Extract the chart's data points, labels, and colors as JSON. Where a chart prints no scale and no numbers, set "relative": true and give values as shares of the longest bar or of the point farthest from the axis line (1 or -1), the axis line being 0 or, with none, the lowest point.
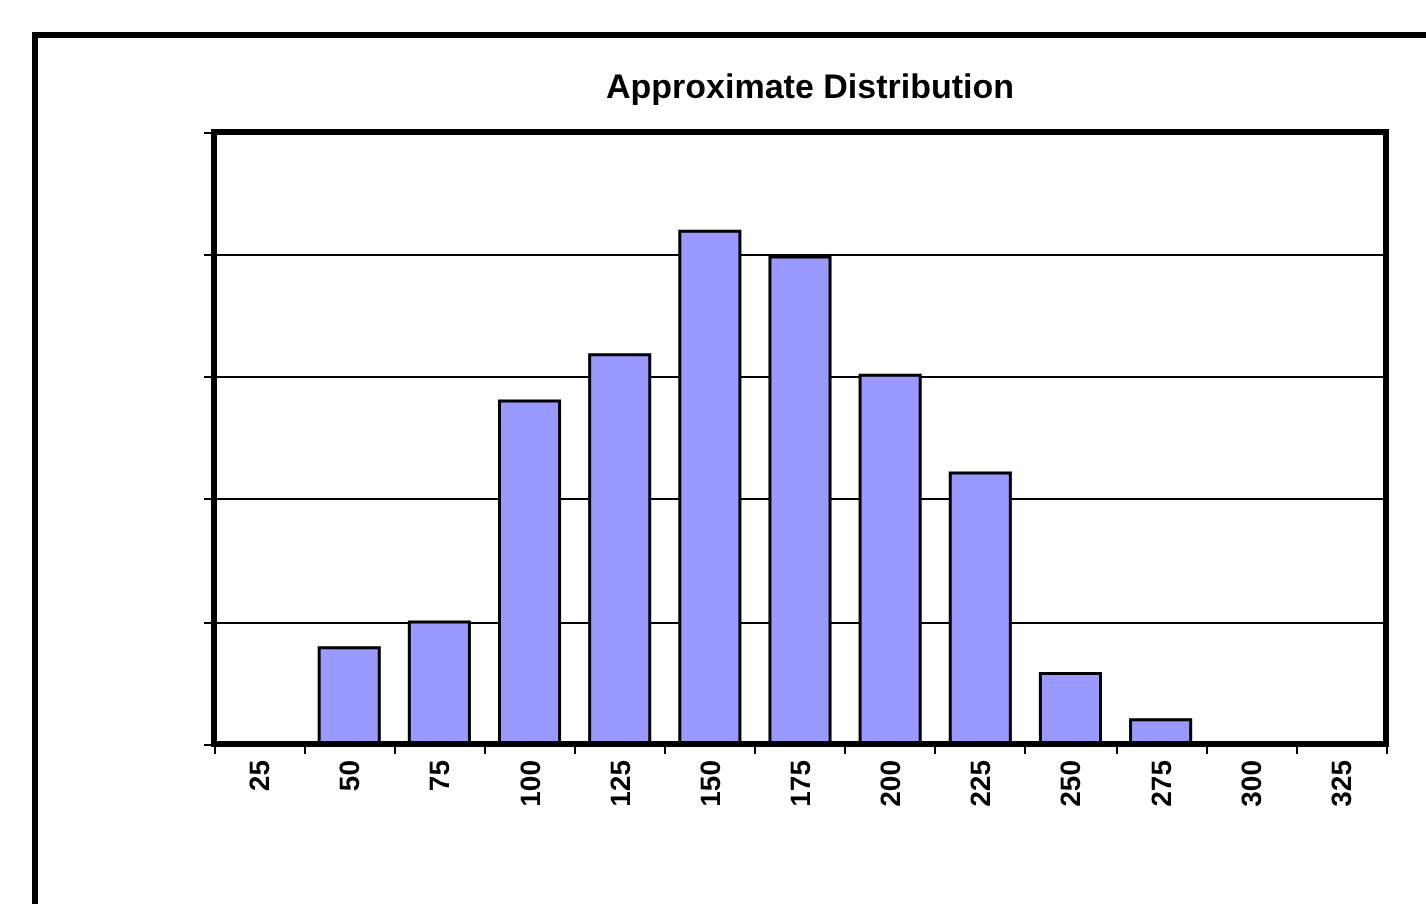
{
  "chart_data": {
    "type": "bar",
    "title": "Approximate Distribution",
    "categories": [
      "25",
      "50",
      "75",
      "100",
      "125",
      "150",
      "175",
      "200",
      "225",
      "250",
      "275",
      "300",
      "325"
    ],
    "values": [
      0,
      0.19,
      0.24,
      0.67,
      0.76,
      1,
      0.95,
      0.72,
      0.53,
      0.14,
      0.05,
      0,
      0
    ],
    "color": "#9999ff",
    "relative": true,
    "grid": "y"
  }
}
